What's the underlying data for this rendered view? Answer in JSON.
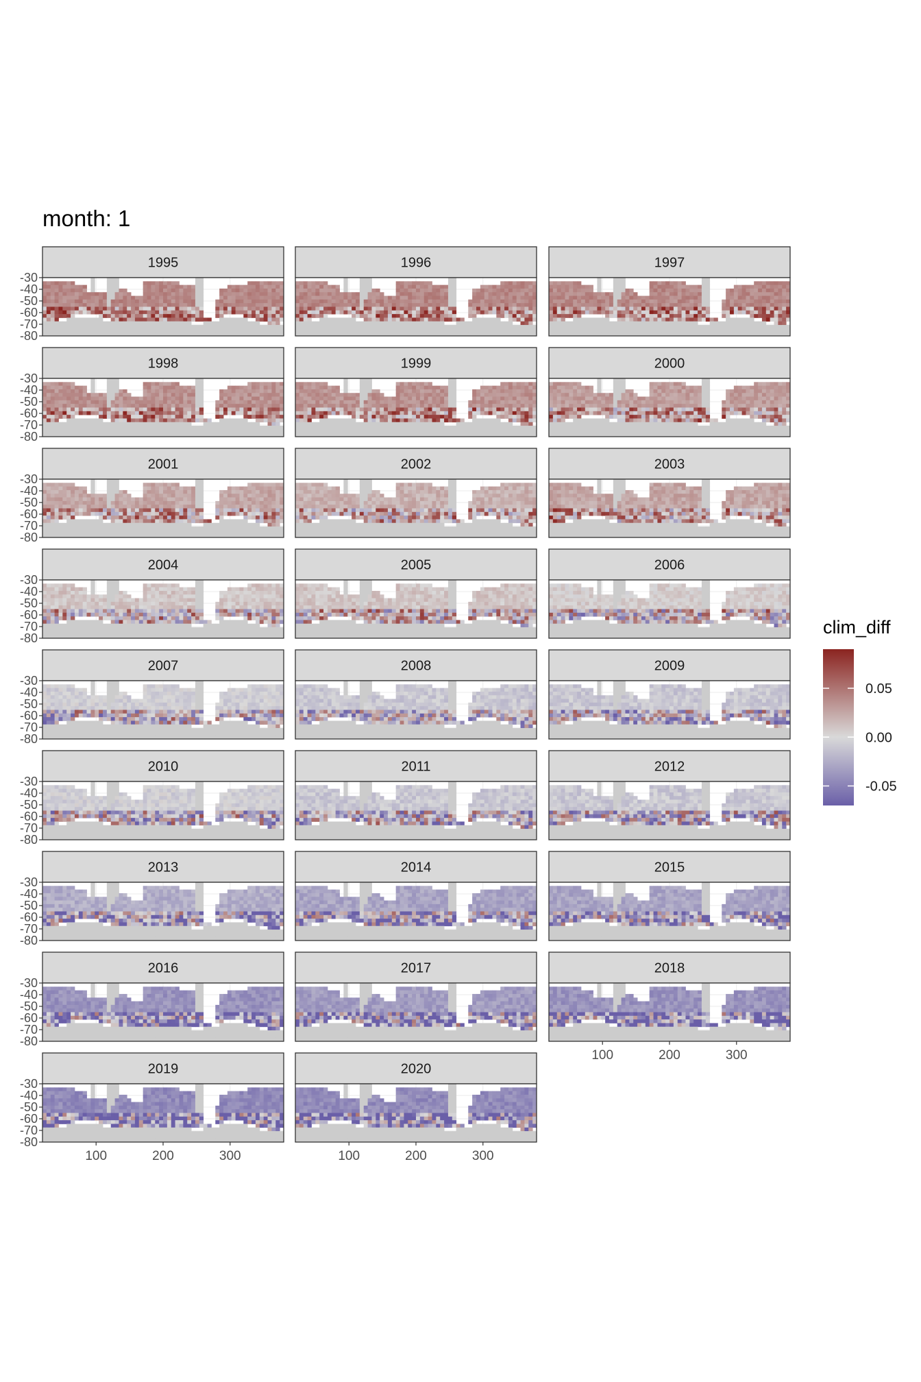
{
  "title": "month: 1",
  "chart_data": {
    "type": "heatmap",
    "facet_by": "year",
    "facet_layout": "wrap",
    "facets": [
      "1995",
      "1996",
      "1997",
      "1998",
      "1999",
      "2000",
      "2001",
      "2002",
      "2003",
      "2004",
      "2005",
      "2006",
      "2007",
      "2008",
      "2009",
      "2010",
      "2011",
      "2012",
      "2013",
      "2014",
      "2015",
      "2016",
      "2017",
      "2018",
      "2019",
      "2020"
    ],
    "facet_mean_clim_diff": [
      0.04,
      0.04,
      0.04,
      0.035,
      0.035,
      0.03,
      0.025,
      0.02,
      0.025,
      0.01,
      0.01,
      0.005,
      -0.005,
      -0.01,
      -0.01,
      -0.005,
      -0.01,
      -0.01,
      -0.025,
      -0.03,
      -0.03,
      -0.04,
      -0.035,
      -0.04,
      -0.045,
      -0.045
    ],
    "x_ticks": [
      100,
      200,
      300
    ],
    "y_ticks": [
      -30,
      -40,
      -50,
      -60,
      -70,
      -80
    ],
    "xlim": [
      20,
      380
    ],
    "ylim": [
      -80,
      -30
    ],
    "fill_label": "clim_diff",
    "fill_range": [
      -0.07,
      0.09
    ],
    "legend_ticks": [
      0.05,
      0.0,
      -0.05
    ],
    "legend_tick_labels": [
      "0.05",
      "0.00",
      "-0.05"
    ],
    "legend_position": "right",
    "colors": {
      "low": "#6a5fa8",
      "mid": "#d9d9d9",
      "high": "#8b2420",
      "land": "#cccccc",
      "strip": "#d9d9d9"
    }
  }
}
